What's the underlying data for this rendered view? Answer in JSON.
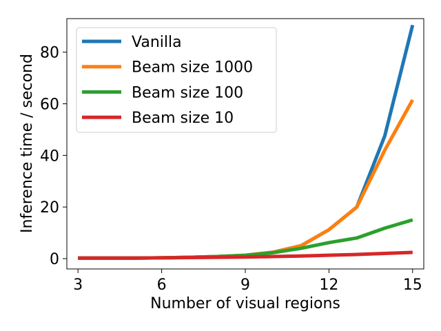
{
  "chart_data": {
    "type": "line",
    "title": "",
    "xlabel": "Number of visual regions",
    "ylabel": "Inference time / second",
    "x": [
      3,
      4,
      5,
      6,
      7,
      8,
      9,
      10,
      11,
      12,
      13,
      14,
      15
    ],
    "xlim": [
      2.6,
      15.4
    ],
    "ylim": [
      -4,
      93
    ],
    "xticks": [
      3,
      6,
      9,
      12,
      15
    ],
    "yticks": [
      0,
      20,
      40,
      60,
      80
    ],
    "grid": false,
    "legend_position": "upper-left",
    "series": [
      {
        "name": "Vanilla",
        "color": "#1f77b4",
        "values": [
          0.2,
          0.2,
          0.2,
          0.3,
          0.5,
          0.8,
          1.3,
          2.5,
          5.0,
          11.2,
          20.0,
          47.5,
          90.5
        ]
      },
      {
        "name": "Beam size 1000",
        "color": "#ff7f0e",
        "values": [
          0.2,
          0.2,
          0.2,
          0.3,
          0.5,
          0.8,
          1.3,
          2.5,
          5.0,
          11.2,
          20.0,
          42.0,
          61.5
        ]
      },
      {
        "name": "Beam size 100",
        "color": "#2ca02c",
        "values": [
          0.2,
          0.2,
          0.2,
          0.3,
          0.5,
          0.8,
          1.2,
          2.3,
          4.0,
          6.2,
          8.0,
          11.8,
          15.0
        ]
      },
      {
        "name": "Beam size 10",
        "color": "#d62728",
        "values": [
          0.2,
          0.2,
          0.2,
          0.3,
          0.4,
          0.5,
          0.6,
          0.8,
          1.0,
          1.3,
          1.6,
          2.0,
          2.4
        ]
      }
    ]
  }
}
